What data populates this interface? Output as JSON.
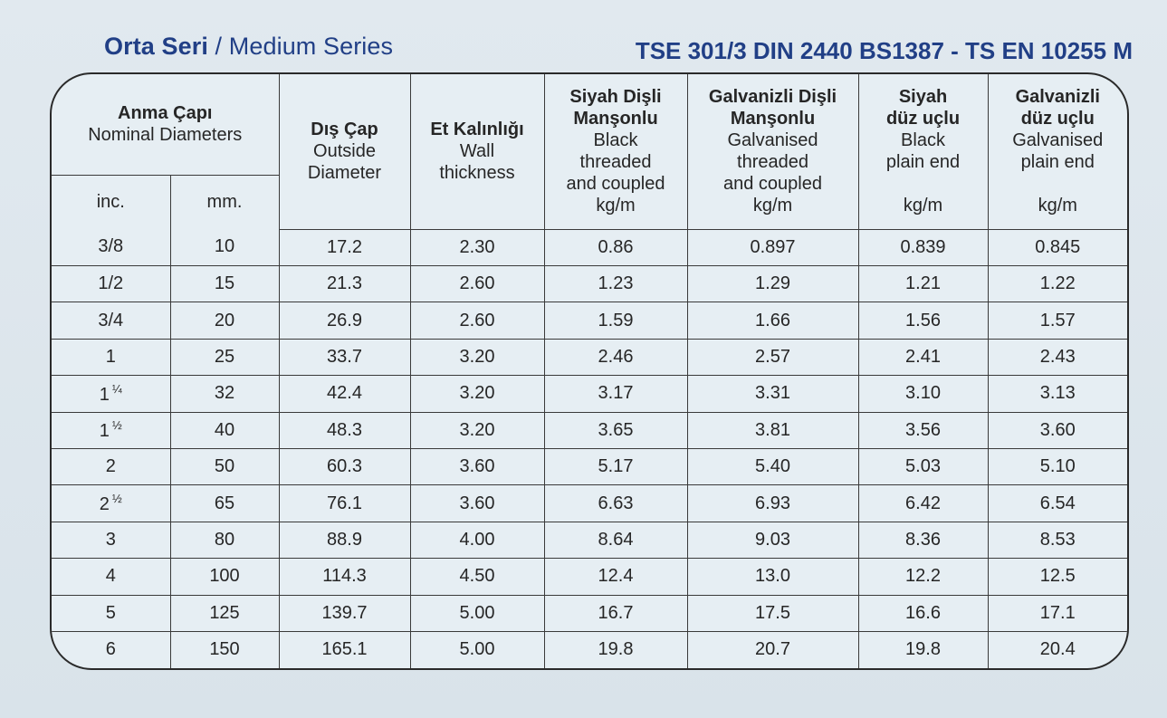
{
  "header": {
    "series_tr": "Orta Seri",
    "series_sep": " / ",
    "series_en": "Medium Series",
    "standards": "TSE 301/3 DIN 2440 BS1387 - TS EN 10255 M"
  },
  "columns": {
    "nominal": {
      "tr": "Anma Çapı",
      "en": "Nominal Diameters"
    },
    "inc": "inc.",
    "mm": "mm.",
    "outside": {
      "tr": "Dış Çap",
      "en1": "Outside",
      "en2": "Diameter"
    },
    "wall": {
      "tr": "Et Kalınlığı",
      "en1": "Wall",
      "en2": "thickness"
    },
    "black_threaded": {
      "tr1": "Siyah Dişli",
      "tr2": "Manşonlu",
      "en1": "Black",
      "en2": "threaded",
      "en3": "and coupled",
      "unit": "kg/m"
    },
    "galv_threaded": {
      "tr1": "Galvanizli Dişli",
      "tr2": "Manşonlu",
      "en1": "Galvanised",
      "en2": "threaded",
      "en3": "and coupled",
      "unit": "kg/m"
    },
    "black_plain": {
      "tr1": "Siyah",
      "tr2": "düz uçlu",
      "en1": "Black",
      "en2": "plain end",
      "unit": "kg/m"
    },
    "galv_plain": {
      "tr1": "Galvanizli",
      "tr2": "düz uçlu",
      "en1": "Galvanised",
      "en2": "plain end",
      "unit": "kg/m"
    }
  },
  "rows": [
    {
      "inc": "3/8",
      "inc_frac": "",
      "mm": "10",
      "od": "17.2",
      "wall": "2.30",
      "bt": "0.86",
      "gt": "0.897",
      "bp": "0.839",
      "gp": "0.845"
    },
    {
      "inc": "1/2",
      "inc_frac": "",
      "mm": "15",
      "od": "21.3",
      "wall": "2.60",
      "bt": "1.23",
      "gt": "1.29",
      "bp": "1.21",
      "gp": "1.22"
    },
    {
      "inc": "3/4",
      "inc_frac": "",
      "mm": "20",
      "od": "26.9",
      "wall": "2.60",
      "bt": "1.59",
      "gt": "1.66",
      "bp": "1.56",
      "gp": "1.57"
    },
    {
      "inc": "1",
      "inc_frac": "",
      "mm": "25",
      "od": "33.7",
      "wall": "3.20",
      "bt": "2.46",
      "gt": "2.57",
      "bp": "2.41",
      "gp": "2.43"
    },
    {
      "inc": "1",
      "inc_frac": "¼",
      "mm": "32",
      "od": "42.4",
      "wall": "3.20",
      "bt": "3.17",
      "gt": "3.31",
      "bp": "3.10",
      "gp": "3.13"
    },
    {
      "inc": "1",
      "inc_frac": "½",
      "mm": "40",
      "od": "48.3",
      "wall": "3.20",
      "bt": "3.65",
      "gt": "3.81",
      "bp": "3.56",
      "gp": "3.60"
    },
    {
      "inc": "2",
      "inc_frac": "",
      "mm": "50",
      "od": "60.3",
      "wall": "3.60",
      "bt": "5.17",
      "gt": "5.40",
      "bp": "5.03",
      "gp": "5.10"
    },
    {
      "inc": "2",
      "inc_frac": "½",
      "mm": "65",
      "od": "76.1",
      "wall": "3.60",
      "bt": "6.63",
      "gt": "6.93",
      "bp": "6.42",
      "gp": "6.54"
    },
    {
      "inc": "3",
      "inc_frac": "",
      "mm": "80",
      "od": "88.9",
      "wall": "4.00",
      "bt": "8.64",
      "gt": "9.03",
      "bp": "8.36",
      "gp": "8.53"
    },
    {
      "inc": "4",
      "inc_frac": "",
      "mm": "100",
      "od": "114.3",
      "wall": "4.50",
      "bt": "12.4",
      "gt": "13.0",
      "bp": "12.2",
      "gp": "12.5"
    },
    {
      "inc": "5",
      "inc_frac": "",
      "mm": "125",
      "od": "139.7",
      "wall": "5.00",
      "bt": "16.7",
      "gt": "17.5",
      "bp": "16.6",
      "gp": "17.1"
    },
    {
      "inc": "6",
      "inc_frac": "",
      "mm": "150",
      "od": "165.1",
      "wall": "5.00",
      "bt": "19.8",
      "gt": "20.7",
      "bp": "19.8",
      "gp": "20.4"
    }
  ]
}
